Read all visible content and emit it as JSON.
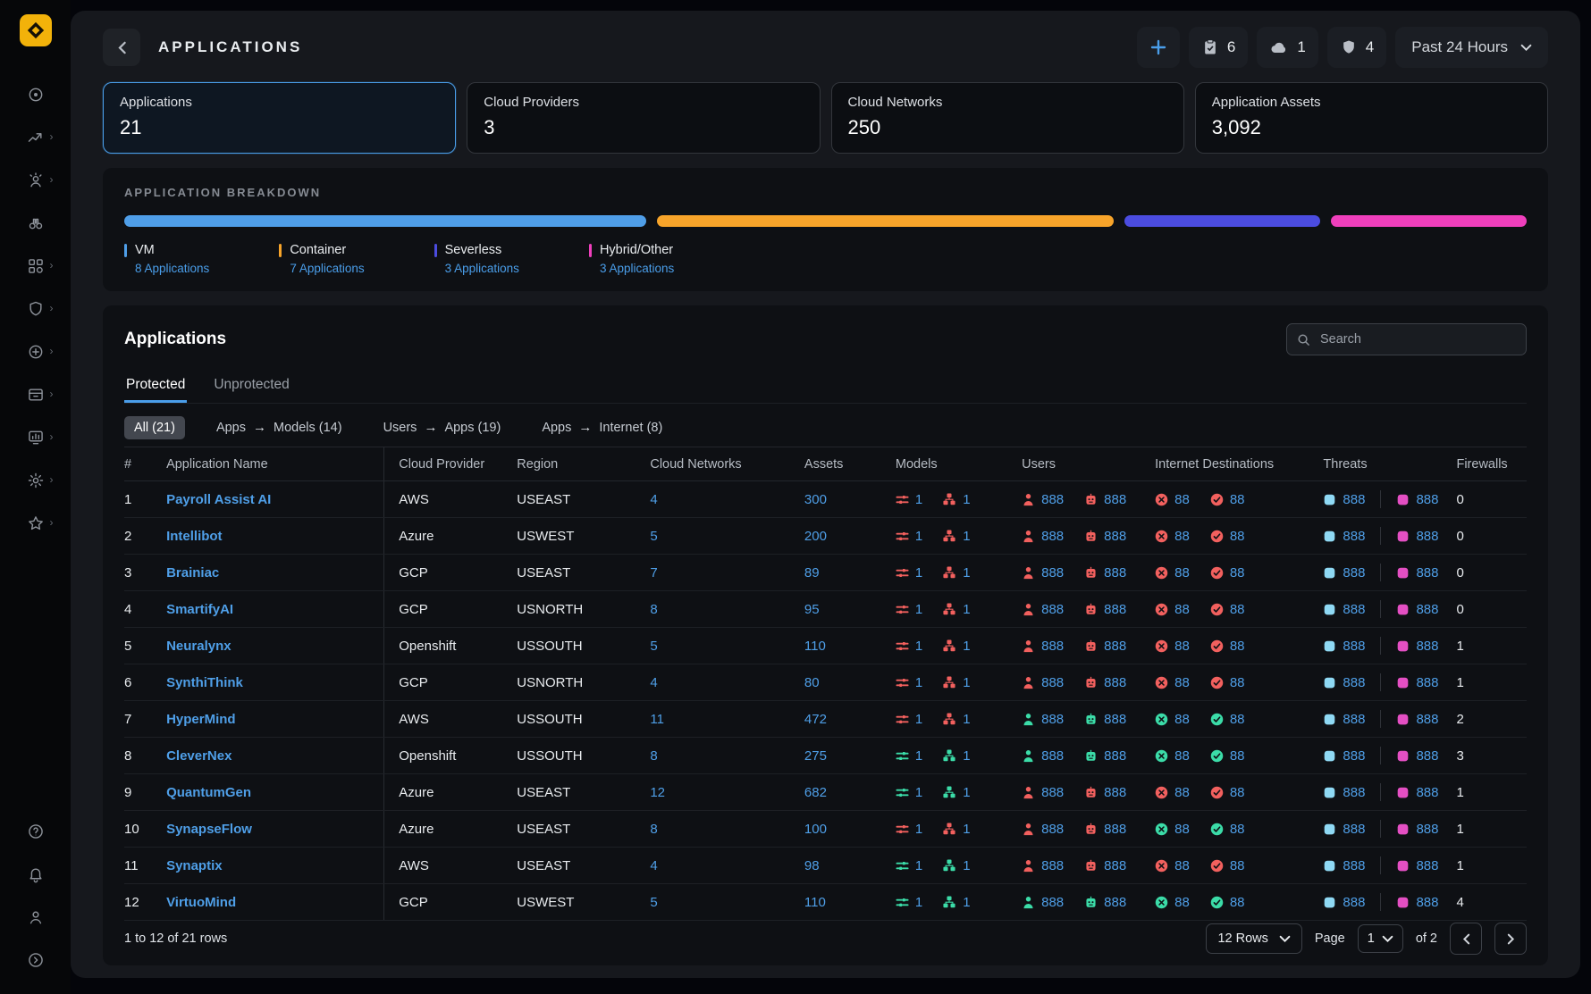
{
  "header": {
    "title": "APPLICATIONS",
    "time_range": "Past 24 Hours",
    "badges": [
      {
        "icon": "clipboard-check",
        "count": "6"
      },
      {
        "icon": "cloud",
        "count": "1"
      },
      {
        "icon": "shield",
        "count": "4"
      }
    ]
  },
  "stats": [
    {
      "label": "Applications",
      "value": "21",
      "selected": true
    },
    {
      "label": "Cloud Providers",
      "value": "3",
      "selected": false
    },
    {
      "label": "Cloud Networks",
      "value": "250",
      "selected": false
    },
    {
      "label": "Application Assets",
      "value": "3,092",
      "selected": false
    }
  ],
  "breakdown": {
    "title": "APPLICATION BREAKDOWN",
    "segments": [
      {
        "label": "VM",
        "count": 8,
        "count_label": "8 Applications",
        "color": "#4f9ee8"
      },
      {
        "label": "Container",
        "count": 7,
        "count_label": "7 Applications",
        "color": "#f7a42a"
      },
      {
        "label": "Severless",
        "count": 3,
        "count_label": "3 Applications",
        "color": "#4b4ce0"
      },
      {
        "label": "Hybrid/Other",
        "count": 3,
        "count_label": "3 Applications",
        "color": "#ef3fbc"
      }
    ]
  },
  "applications": {
    "title": "Applications",
    "search_placeholder": "Search",
    "tabs": [
      {
        "label": "Protected",
        "active": true
      },
      {
        "label": "Unprotected",
        "active": false
      }
    ],
    "filters": [
      {
        "parts": [
          "All (21)"
        ],
        "active": true
      },
      {
        "parts": [
          "Apps",
          "Models (14)"
        ],
        "active": false
      },
      {
        "parts": [
          "Users",
          "Apps (19)"
        ],
        "active": false
      },
      {
        "parts": [
          "Apps",
          "Internet (8)"
        ],
        "active": false
      }
    ]
  },
  "table": {
    "columns": [
      "#",
      "Application Name",
      "Cloud Provider",
      "Region",
      "Cloud Networks",
      "Assets",
      "Models",
      "Users",
      "Internet Destinations",
      "Threats",
      "Firewalls"
    ],
    "rows": [
      {
        "num": "1",
        "name": "Payroll Assist AI",
        "provider": "AWS",
        "region": "USEAST",
        "networks": "4",
        "assets": "300",
        "models": [
          "1",
          "1"
        ],
        "models_state": "alert",
        "users": [
          "888",
          "888"
        ],
        "users_state": "alert",
        "internet": [
          "88",
          "88"
        ],
        "internet_state": "alert",
        "threats": [
          "888",
          "888"
        ],
        "firewalls": "0"
      },
      {
        "num": "2",
        "name": "Intellibot",
        "provider": "Azure",
        "region": "USWEST",
        "networks": "5",
        "assets": "200",
        "models": [
          "1",
          "1"
        ],
        "models_state": "alert",
        "users": [
          "888",
          "888"
        ],
        "users_state": "alert",
        "internet": [
          "88",
          "88"
        ],
        "internet_state": "alert",
        "threats": [
          "888",
          "888"
        ],
        "firewalls": "0"
      },
      {
        "num": "3",
        "name": "Brainiac",
        "provider": "GCP",
        "region": "USEAST",
        "networks": "7",
        "assets": "89",
        "models": [
          "1",
          "1"
        ],
        "models_state": "alert",
        "users": [
          "888",
          "888"
        ],
        "users_state": "alert",
        "internet": [
          "88",
          "88"
        ],
        "internet_state": "alert",
        "threats": [
          "888",
          "888"
        ],
        "firewalls": "0"
      },
      {
        "num": "4",
        "name": "SmartifyAI",
        "provider": "GCP",
        "region": "USNORTH",
        "networks": "8",
        "assets": "95",
        "models": [
          "1",
          "1"
        ],
        "models_state": "alert",
        "users": [
          "888",
          "888"
        ],
        "users_state": "alert",
        "internet": [
          "88",
          "88"
        ],
        "internet_state": "alert",
        "threats": [
          "888",
          "888"
        ],
        "firewalls": "0"
      },
      {
        "num": "5",
        "name": "Neuralynx",
        "provider": "Openshift",
        "region": "USSOUTH",
        "networks": "5",
        "assets": "110",
        "models": [
          "1",
          "1"
        ],
        "models_state": "alert",
        "users": [
          "888",
          "888"
        ],
        "users_state": "alert",
        "internet": [
          "88",
          "88"
        ],
        "internet_state": "alert",
        "threats": [
          "888",
          "888"
        ],
        "firewalls": "1"
      },
      {
        "num": "6",
        "name": "SynthiThink",
        "provider": "GCP",
        "region": "USNORTH",
        "networks": "4",
        "assets": "80",
        "models": [
          "1",
          "1"
        ],
        "models_state": "alert",
        "users": [
          "888",
          "888"
        ],
        "users_state": "alert",
        "internet": [
          "88",
          "88"
        ],
        "internet_state": "alert",
        "threats": [
          "888",
          "888"
        ],
        "firewalls": "1"
      },
      {
        "num": "7",
        "name": "HyperMind",
        "provider": "AWS",
        "region": "USSOUTH",
        "networks": "11",
        "assets": "472",
        "models": [
          "1",
          "1"
        ],
        "models_state": "alert",
        "users": [
          "888",
          "888"
        ],
        "users_state": "ok",
        "internet": [
          "88",
          "88"
        ],
        "internet_state": "ok",
        "threats": [
          "888",
          "888"
        ],
        "firewalls": "2"
      },
      {
        "num": "8",
        "name": "CleverNex",
        "provider": "Openshift",
        "region": "USSOUTH",
        "networks": "8",
        "assets": "275",
        "models": [
          "1",
          "1"
        ],
        "models_state": "ok",
        "users": [
          "888",
          "888"
        ],
        "users_state": "ok",
        "internet": [
          "88",
          "88"
        ],
        "internet_state": "ok",
        "threats": [
          "888",
          "888"
        ],
        "firewalls": "3"
      },
      {
        "num": "9",
        "name": "QuantumGen",
        "provider": "Azure",
        "region": "USEAST",
        "networks": "12",
        "assets": "682",
        "models": [
          "1",
          "1"
        ],
        "models_state": "ok",
        "users": [
          "888",
          "888"
        ],
        "users_state": "alert",
        "internet": [
          "88",
          "88"
        ],
        "internet_state": "alert",
        "threats": [
          "888",
          "888"
        ],
        "firewalls": "1"
      },
      {
        "num": "10",
        "name": "SynapseFlow",
        "provider": "Azure",
        "region": "USEAST",
        "networks": "8",
        "assets": "100",
        "models": [
          "1",
          "1"
        ],
        "models_state": "alert",
        "users": [
          "888",
          "888"
        ],
        "users_state": "alert",
        "internet": [
          "88",
          "88"
        ],
        "internet_state": "ok",
        "threats": [
          "888",
          "888"
        ],
        "firewalls": "1"
      },
      {
        "num": "11",
        "name": "Synaptix",
        "provider": "AWS",
        "region": "USEAST",
        "networks": "4",
        "assets": "98",
        "models": [
          "1",
          "1"
        ],
        "models_state": "ok",
        "users": [
          "888",
          "888"
        ],
        "users_state": "alert",
        "internet": [
          "88",
          "88"
        ],
        "internet_state": "alert",
        "threats": [
          "888",
          "888"
        ],
        "firewalls": "1"
      },
      {
        "num": "12",
        "name": "VirtuoMind",
        "provider": "GCP",
        "region": "USWEST",
        "networks": "5",
        "assets": "110",
        "models": [
          "1",
          "1"
        ],
        "models_state": "ok",
        "users": [
          "888",
          "888"
        ],
        "users_state": "ok",
        "internet": [
          "88",
          "88"
        ],
        "internet_state": "ok",
        "threats": [
          "888",
          "888"
        ],
        "firewalls": "4"
      }
    ]
  },
  "footer": {
    "rows_summary": "1 to 12 of 21 rows",
    "rows_per_page": "12 Rows",
    "page_label": "Page",
    "page": "1",
    "of_label": "of 2"
  },
  "sidebar": {
    "items": [
      {
        "icon": "radar",
        "submenu": false
      },
      {
        "icon": "flow",
        "submenu": true
      },
      {
        "icon": "user-rays",
        "submenu": true
      },
      {
        "icon": "binoculars",
        "submenu": false
      },
      {
        "icon": "grid",
        "submenu": true
      },
      {
        "icon": "shield",
        "submenu": true
      },
      {
        "icon": "crosshair",
        "submenu": true
      },
      {
        "icon": "archive",
        "submenu": true
      },
      {
        "icon": "chart",
        "submenu": true
      },
      {
        "icon": "gear",
        "submenu": true
      },
      {
        "icon": "star",
        "submenu": true
      }
    ],
    "bottom_items": [
      {
        "icon": "help"
      },
      {
        "icon": "bell"
      },
      {
        "icon": "user"
      },
      {
        "icon": "expand"
      }
    ]
  },
  "colors": {
    "accent_blue": "#4a9eea",
    "alert_red": "#f2605e",
    "ok_teal": "#3bdca8",
    "threat_cyan": "#8fd9f4",
    "threat_pink": "#e44fc3",
    "brand_yellow": "#f2b20a"
  }
}
